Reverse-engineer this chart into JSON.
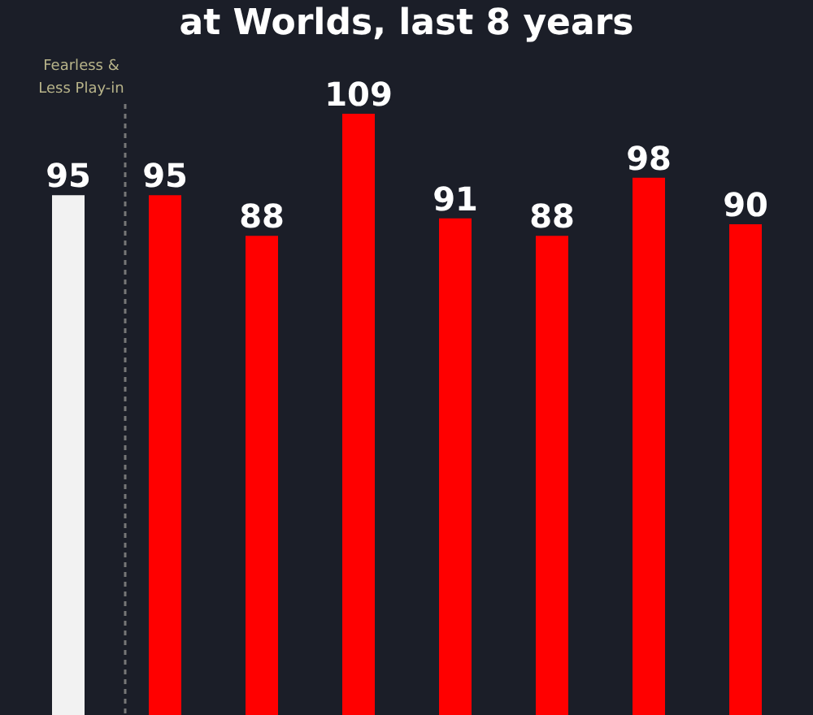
{
  "chart_data": {
    "type": "bar",
    "title": "at Worlds, last 8 years",
    "categories": [
      null,
      null,
      null,
      null,
      null,
      null,
      null,
      null
    ],
    "values": [
      95,
      95,
      88,
      109,
      91,
      88,
      98,
      90
    ],
    "colors": [
      "#f2f2f2",
      "#ff0000",
      "#ff0000",
      "#ff0000",
      "#ff0000",
      "#ff0000",
      "#ff0000",
      "#ff0000"
    ],
    "data_labels": true,
    "tick_labels": false,
    "annotations": [
      "Fearless & Less Play-in"
    ]
  }
}
